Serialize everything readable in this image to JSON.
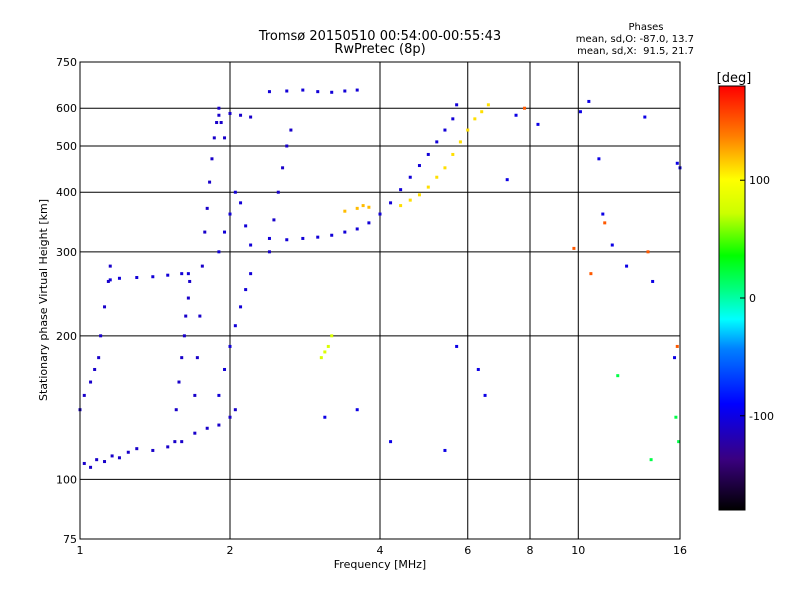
{
  "header": {
    "title": "Tromsø 20150510 00:54:00-00:55:43",
    "subtitle": "RwPretec (8p)",
    "stats_title": "Phases",
    "stats_o": "mean, sd,O: -87.0, 13.7",
    "stats_x": "mean, sd,X:  91.5, 21.7"
  },
  "chart_data": {
    "type": "scatter",
    "title": "Tromsø 20150510 00:54:00-00:55:43",
    "subtitle": "RwPretec (8p)",
    "xlabel": "Frequency [MHz]",
    "ylabel": "Stationary phase Virtual Height [km]",
    "x_scale": "log",
    "y_scale": "log",
    "xlim": [
      1,
      16
    ],
    "ylim": [
      75,
      750
    ],
    "x_ticks": [
      1,
      2,
      4,
      6,
      8,
      10,
      16
    ],
    "x_tick_labels": [
      "1",
      "2",
      "4",
      "6",
      "8",
      "10",
      "16"
    ],
    "y_ticks": [
      75,
      100,
      200,
      300,
      400,
      500,
      600,
      750
    ],
    "y_tick_labels": [
      "75",
      "100",
      "200",
      "300",
      "400",
      "500",
      "600",
      "750"
    ],
    "grid": true,
    "colorbar": {
      "label": "[deg]",
      "min": -180,
      "max": 180,
      "ticks": [
        -100,
        0,
        100
      ],
      "tick_labels": [
        "-100",
        "0",
        "100"
      ],
      "colormap": "rainbow"
    },
    "phase_stats": {
      "O": {
        "mean": -87.0,
        "sd": 13.7
      },
      "X": {
        "mean": 91.5,
        "sd": 21.7
      }
    },
    "series": [
      {
        "points": [
          [
            1.02,
            108
          ],
          [
            1.05,
            106
          ],
          [
            1.08,
            110
          ],
          [
            1.12,
            109
          ],
          [
            1.16,
            112
          ],
          [
            1.2,
            111
          ],
          [
            1.25,
            114
          ],
          [
            1.3,
            116
          ],
          [
            1.4,
            115
          ],
          [
            1.5,
            117
          ],
          [
            1.6,
            120
          ],
          [
            1.7,
            125
          ],
          [
            1.8,
            128
          ],
          [
            1.9,
            130
          ],
          [
            2.0,
            135
          ],
          [
            2.05,
            140
          ]
        ],
        "phase": -110
      },
      {
        "points": [
          [
            1.0,
            140
          ],
          [
            1.02,
            150
          ],
          [
            1.05,
            160
          ],
          [
            1.07,
            170
          ],
          [
            1.09,
            180
          ],
          [
            1.1,
            200
          ],
          [
            1.12,
            230
          ],
          [
            1.14,
            260
          ],
          [
            1.15,
            280
          ]
        ],
        "phase": -110
      },
      {
        "points": [
          [
            1.15,
            262
          ],
          [
            1.2,
            264
          ],
          [
            1.3,
            265
          ],
          [
            1.4,
            266
          ],
          [
            1.5,
            268
          ],
          [
            1.6,
            270
          ],
          [
            1.65,
            270
          ]
        ],
        "phase": -105
      },
      {
        "points": [
          [
            1.55,
            120
          ],
          [
            1.56,
            140
          ],
          [
            1.58,
            160
          ],
          [
            1.6,
            180
          ],
          [
            1.62,
            200
          ],
          [
            1.63,
            220
          ],
          [
            1.65,
            240
          ],
          [
            1.66,
            260
          ]
        ],
        "phase": -110
      },
      {
        "points": [
          [
            1.7,
            150
          ],
          [
            1.72,
            180
          ],
          [
            1.74,
            220
          ],
          [
            1.76,
            280
          ],
          [
            1.78,
            330
          ],
          [
            1.8,
            370
          ],
          [
            1.82,
            420
          ],
          [
            1.84,
            470
          ],
          [
            1.86,
            520
          ],
          [
            1.88,
            560
          ],
          [
            1.9,
            600
          ],
          [
            1.92,
            560
          ],
          [
            1.95,
            520
          ]
        ],
        "phase": -110
      },
      {
        "points": [
          [
            1.9,
            300
          ],
          [
            1.95,
            330
          ],
          [
            2.0,
            360
          ],
          [
            2.05,
            400
          ],
          [
            2.1,
            380
          ],
          [
            2.15,
            340
          ],
          [
            2.2,
            310
          ]
        ],
        "phase": -105
      },
      {
        "points": [
          [
            1.9,
            150
          ],
          [
            1.95,
            170
          ],
          [
            2.0,
            190
          ],
          [
            2.05,
            210
          ],
          [
            2.1,
            230
          ],
          [
            2.15,
            250
          ],
          [
            2.2,
            270
          ]
        ],
        "phase": -105
      },
      {
        "points": [
          [
            1.9,
            580
          ],
          [
            2.0,
            585
          ],
          [
            2.1,
            580
          ],
          [
            2.2,
            575
          ]
        ],
        "phase": -110
      },
      {
        "points": [
          [
            2.4,
            320
          ],
          [
            2.6,
            318
          ],
          [
            2.8,
            320
          ],
          [
            3.0,
            322
          ],
          [
            3.2,
            325
          ],
          [
            3.4,
            330
          ],
          [
            3.6,
            335
          ],
          [
            3.8,
            345
          ],
          [
            4.0,
            360
          ],
          [
            4.2,
            380
          ],
          [
            4.4,
            405
          ],
          [
            4.6,
            430
          ],
          [
            4.8,
            455
          ],
          [
            5.0,
            480
          ],
          [
            5.2,
            510
          ],
          [
            5.4,
            540
          ],
          [
            5.6,
            570
          ],
          [
            5.7,
            610
          ]
        ],
        "phase": -105
      },
      {
        "points": [
          [
            2.4,
            650
          ],
          [
            2.6,
            652
          ],
          [
            2.8,
            655
          ],
          [
            3.0,
            650
          ],
          [
            3.2,
            648
          ],
          [
            3.4,
            652
          ],
          [
            3.6,
            655
          ]
        ],
        "phase": -105
      },
      {
        "points": [
          [
            2.4,
            300
          ],
          [
            2.45,
            350
          ],
          [
            2.5,
            400
          ],
          [
            2.55,
            450
          ],
          [
            2.6,
            500
          ],
          [
            2.65,
            540
          ]
        ],
        "phase": -110
      },
      {
        "points": [
          [
            3.4,
            365
          ],
          [
            3.6,
            370
          ],
          [
            3.7,
            375
          ],
          [
            3.8,
            372
          ]
        ],
        "phase": 120
      },
      {
        "points": [
          [
            4.4,
            375
          ],
          [
            4.6,
            385
          ],
          [
            4.8,
            395
          ],
          [
            5.0,
            410
          ],
          [
            5.2,
            430
          ],
          [
            5.4,
            450
          ],
          [
            5.6,
            480
          ],
          [
            5.8,
            510
          ],
          [
            6.0,
            540
          ],
          [
            6.2,
            570
          ],
          [
            6.4,
            590
          ],
          [
            6.6,
            610
          ]
        ],
        "phase": 110
      },
      {
        "points": [
          [
            3.05,
            180
          ],
          [
            3.1,
            185
          ],
          [
            3.15,
            190
          ],
          [
            3.2,
            200
          ]
        ],
        "phase": 80
      },
      {
        "points": [
          [
            3.1,
            135
          ],
          [
            3.6,
            140
          ],
          [
            4.2,
            120
          ],
          [
            5.4,
            115
          ],
          [
            5.7,
            190
          ],
          [
            6.3,
            170
          ],
          [
            6.5,
            150
          ],
          [
            7.2,
            425
          ],
          [
            7.5,
            580
          ],
          [
            8.3,
            555
          ],
          [
            10.1,
            590
          ],
          [
            10.5,
            620
          ],
          [
            11.0,
            470
          ],
          [
            11.2,
            360
          ],
          [
            11.7,
            310
          ],
          [
            12.5,
            280
          ],
          [
            13.6,
            575
          ],
          [
            14.1,
            260
          ],
          [
            15.6,
            180
          ],
          [
            15.8,
            460
          ],
          [
            16.0,
            450
          ]
        ],
        "phase": -100
      },
      {
        "points": [
          [
            7.8,
            600
          ],
          [
            9.8,
            305
          ],
          [
            10.6,
            270
          ],
          [
            11.3,
            345
          ],
          [
            13.8,
            300
          ],
          [
            15.8,
            190
          ]
        ],
        "phase": 150
      },
      {
        "points": [
          [
            12.0,
            165
          ],
          [
            15.7,
            135
          ],
          [
            15.9,
            120
          ],
          [
            14.0,
            110
          ]
        ],
        "phase": 20
      }
    ]
  }
}
